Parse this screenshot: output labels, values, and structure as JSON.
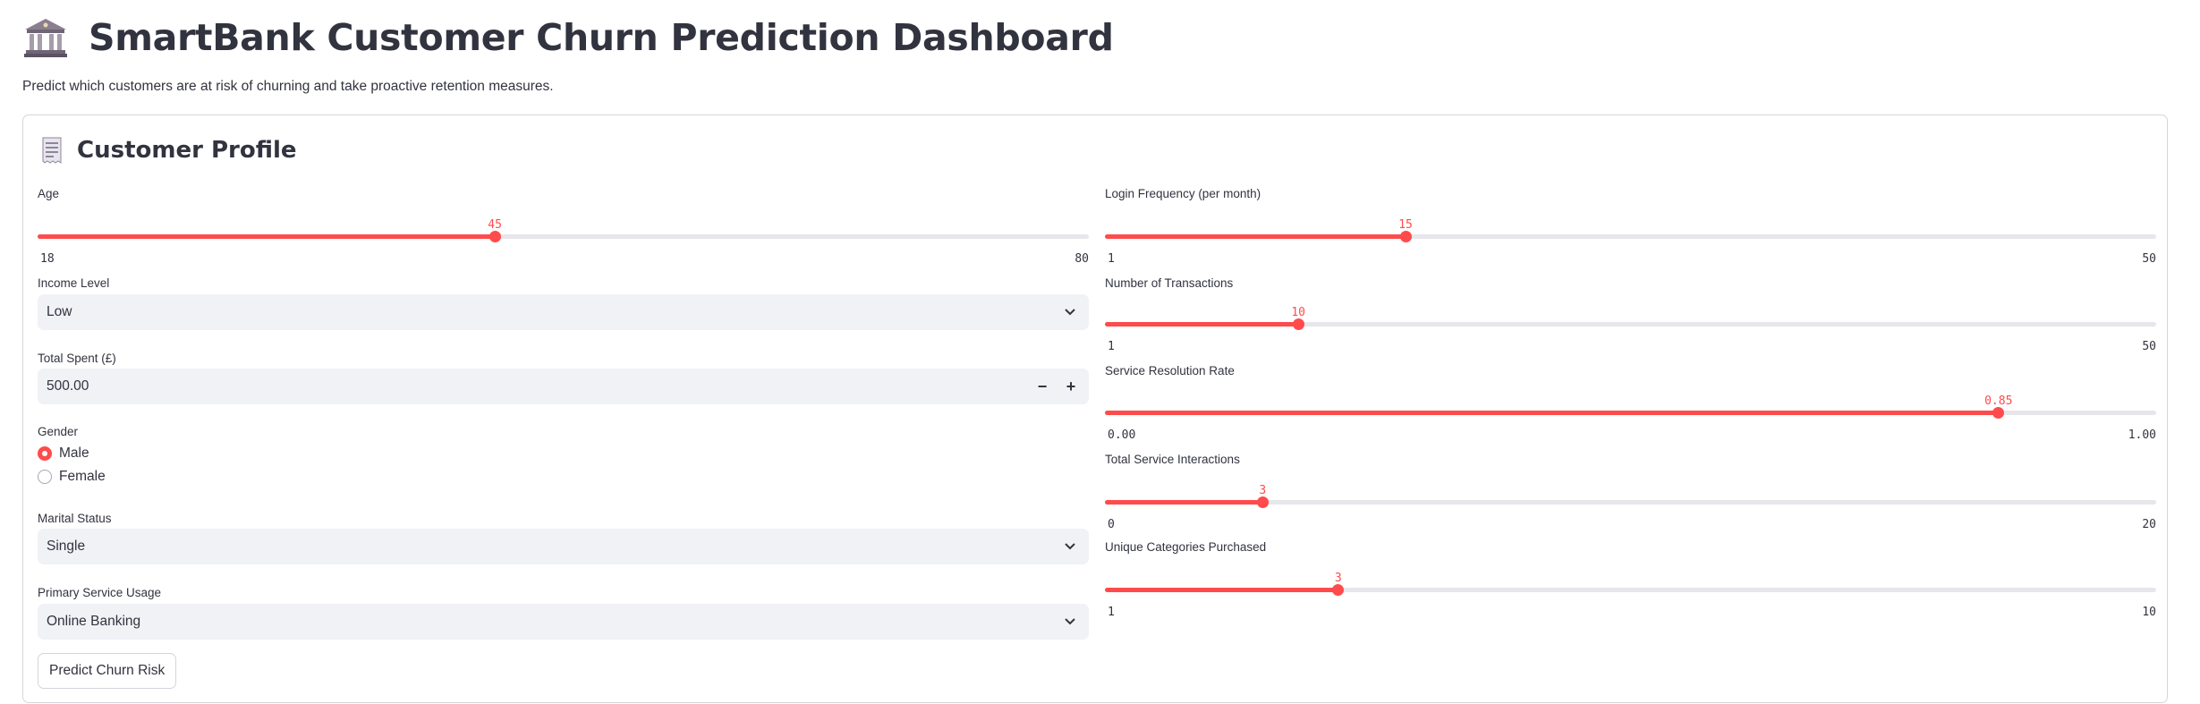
{
  "header": {
    "title_icon": "bank-icon",
    "title": "SmartBank Customer Churn Prediction Dashboard",
    "subtitle": "Predict which customers are at risk of churning and take proactive retention measures."
  },
  "form": {
    "section_icon": "receipt-icon",
    "section_title": "Customer Profile",
    "age": {
      "label": "Age",
      "value": "45",
      "min": "18",
      "max": "80",
      "fraction": 0.435
    },
    "income_level": {
      "label": "Income Level",
      "value": "Low"
    },
    "total_spent": {
      "label": "Total Spent (£)",
      "value": "500.00",
      "minus": "−",
      "plus": "+"
    },
    "gender": {
      "label": "Gender",
      "options": [
        "Male",
        "Female"
      ],
      "selected": "Male"
    },
    "marital_status": {
      "label": "Marital Status",
      "value": "Single"
    },
    "primary_service": {
      "label": "Primary Service Usage",
      "value": "Online Banking"
    },
    "predict_button": "Predict Churn Risk",
    "login_frequency": {
      "label": "Login Frequency (per month)",
      "value": "15",
      "min": "1",
      "max": "50",
      "fraction": 0.286
    },
    "num_transactions": {
      "label": "Number of Transactions",
      "value": "10",
      "min": "1",
      "max": "50",
      "fraction": 0.184
    },
    "service_resolution": {
      "label": "Service Resolution Rate",
      "value": "0.85",
      "min": "0.00",
      "max": "1.00",
      "fraction": 0.85
    },
    "total_service_interactions": {
      "label": "Total Service Interactions",
      "value": "3",
      "min": "0",
      "max": "20",
      "fraction": 0.15
    },
    "unique_categories": {
      "label": "Unique Categories Purchased",
      "value": "3",
      "min": "1",
      "max": "10",
      "fraction": 0.222
    }
  },
  "colors": {
    "accent": "#ff4b4b",
    "text": "#31333f",
    "input_bg": "#f0f2f6",
    "track": "#e6e6eb"
  }
}
